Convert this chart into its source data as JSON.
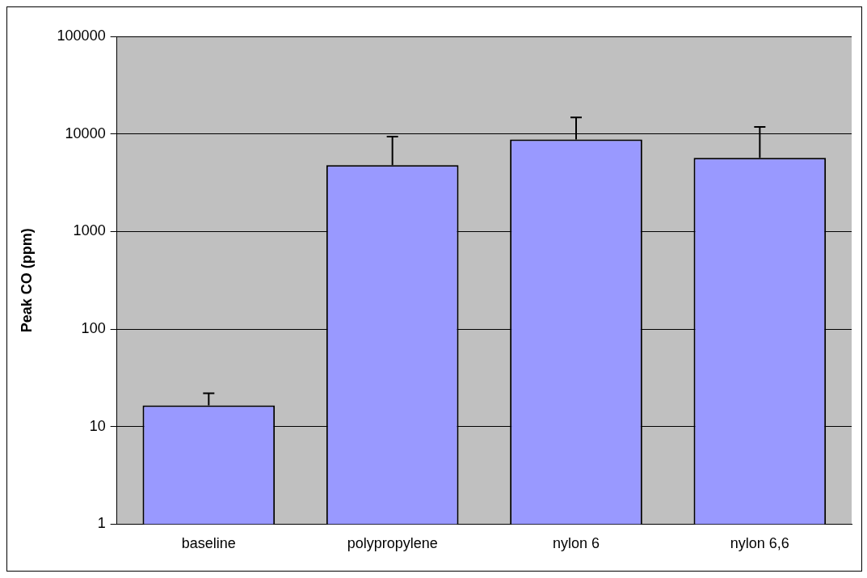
{
  "chart_data": {
    "type": "bar",
    "ylabel": "Peak CO (ppm)",
    "categories": [
      "baseline",
      "polypropylene",
      "nylon 6",
      "nylon 6,6"
    ],
    "values": [
      16.5,
      4800,
      8800,
      5700
    ],
    "errors": [
      [
        16.5,
        22
      ],
      [
        4800,
        9400
      ],
      [
        8800,
        14800
      ],
      [
        5700,
        11800
      ]
    ],
    "color": "#9999ff",
    "log": true,
    "ylim": [
      1,
      100000
    ],
    "yticks": [
      1,
      10,
      100,
      1000,
      10000,
      100000
    ],
    "grid": "y",
    "legend": false
  }
}
